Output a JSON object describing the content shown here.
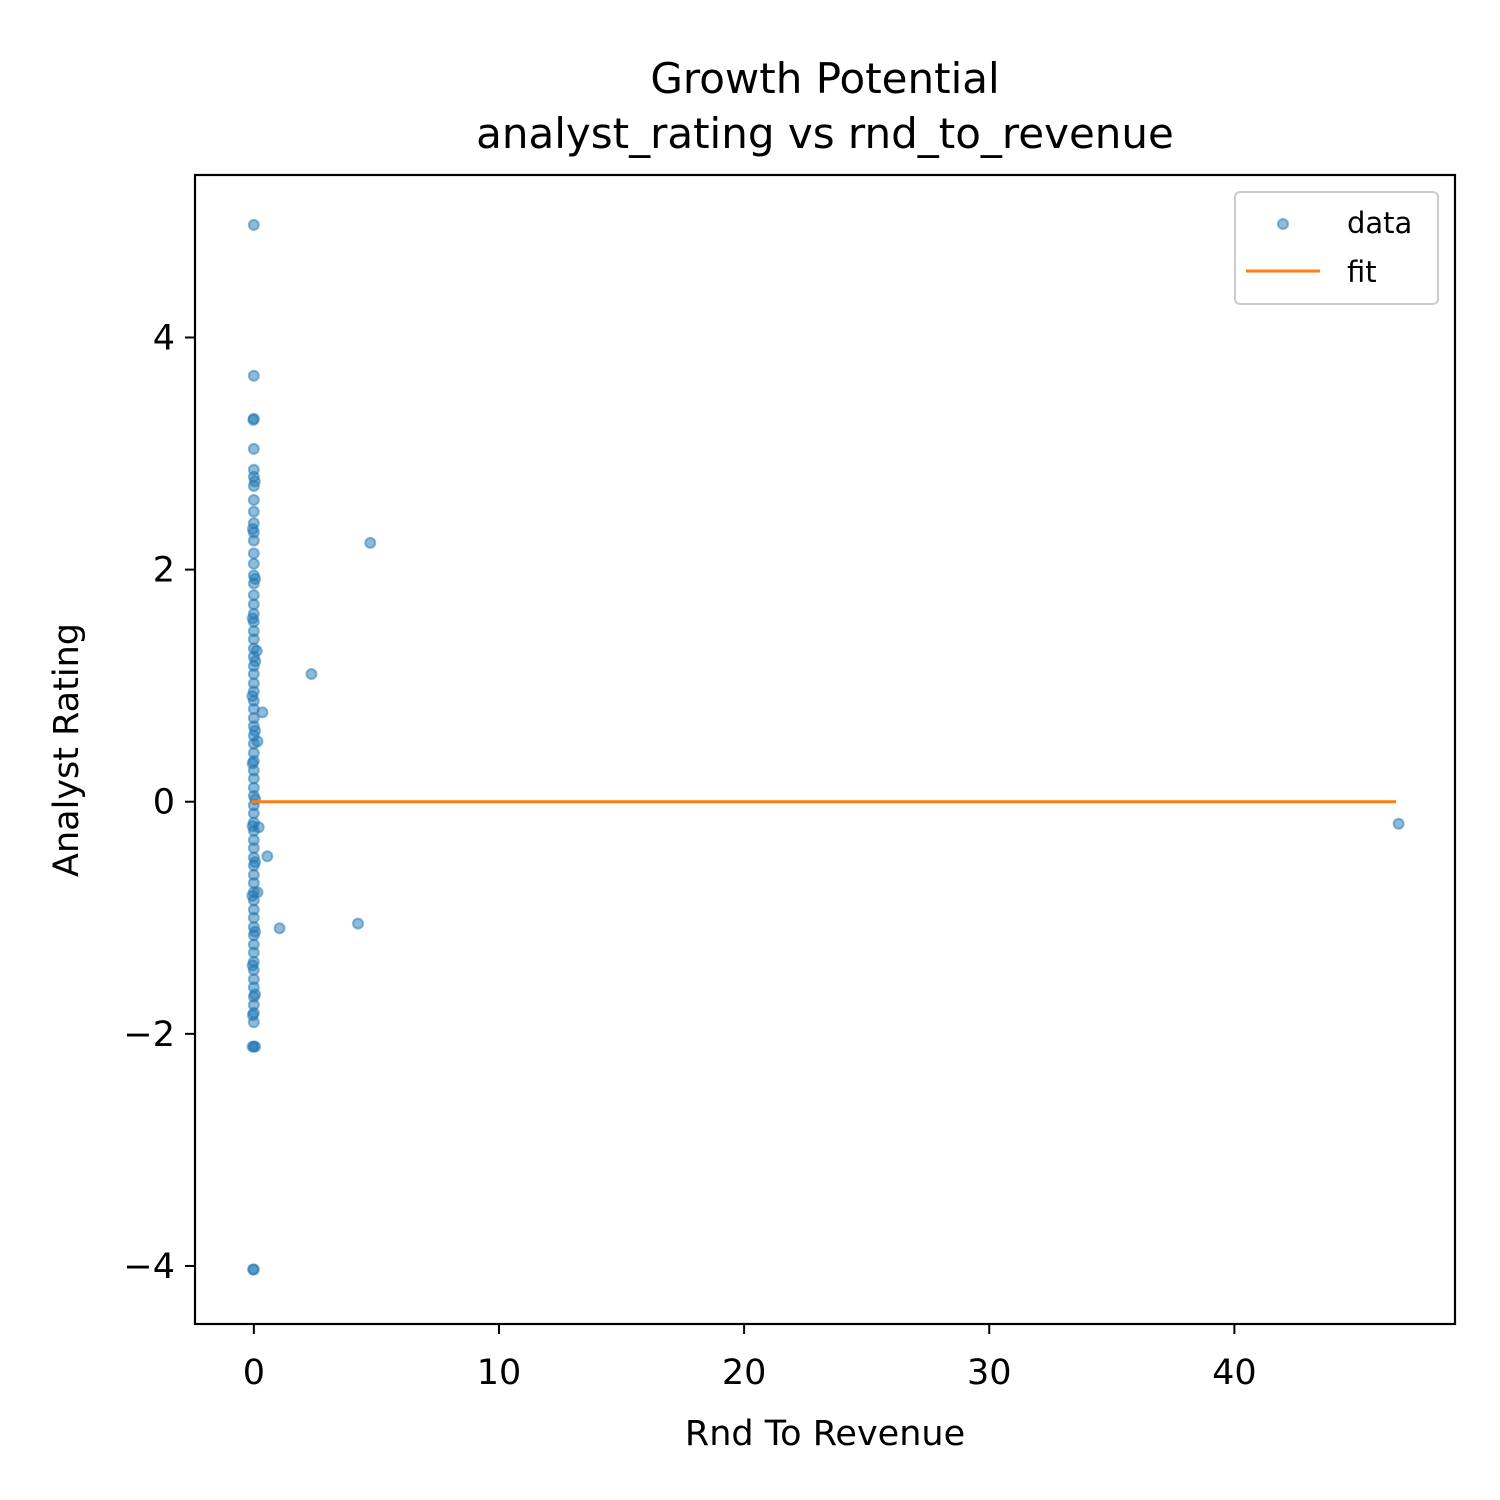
{
  "chart_data": {
    "type": "scatter",
    "title": "Growth Potential",
    "subtitle": "analyst_rating vs rnd_to_revenue",
    "xlabel": "Rnd To Revenue",
    "ylabel": "Analyst Rating",
    "xlim": [
      -2.4,
      49.0
    ],
    "ylim": [
      -4.5,
      5.4
    ],
    "xticks": [
      0,
      10,
      20,
      30,
      40
    ],
    "xtick_labels": [
      "0",
      "10",
      "20",
      "30",
      "40"
    ],
    "yticks": [
      -4,
      -2,
      0,
      2,
      4
    ],
    "ytick_labels": [
      "−4",
      "−2",
      "0",
      "2",
      "4"
    ],
    "grid": false,
    "legend": {
      "position": "top-right",
      "entries": [
        "data",
        "fit"
      ]
    },
    "colors": {
      "data": "#1f77b4",
      "fit": "#ff7f0e"
    },
    "series": [
      {
        "name": "data",
        "type": "scatter",
        "points": [
          [
            0.0,
            4.97
          ],
          [
            0.0,
            3.67
          ],
          [
            0.0,
            3.3
          ],
          [
            -0.02,
            3.29
          ],
          [
            0.0,
            3.04
          ],
          [
            0.0,
            2.86
          ],
          [
            0.0,
            2.8
          ],
          [
            0.0,
            2.72
          ],
          [
            0.0,
            2.6
          ],
          [
            0.0,
            2.5
          ],
          [
            0.0,
            2.4
          ],
          [
            0.0,
            2.32
          ],
          [
            0.0,
            2.25
          ],
          [
            0.0,
            2.14
          ],
          [
            0.0,
            2.05
          ],
          [
            0.0,
            1.95
          ],
          [
            0.0,
            1.88
          ],
          [
            0.0,
            1.78
          ],
          [
            0.0,
            1.7
          ],
          [
            0.0,
            1.62
          ],
          [
            0.0,
            1.55
          ],
          [
            0.0,
            1.47
          ],
          [
            0.0,
            1.4
          ],
          [
            0.0,
            1.32
          ],
          [
            0.0,
            1.25
          ],
          [
            0.0,
            1.17
          ],
          [
            0.0,
            1.1
          ],
          [
            0.0,
            1.02
          ],
          [
            0.0,
            0.95
          ],
          [
            0.0,
            0.87
          ],
          [
            0.0,
            0.8
          ],
          [
            0.0,
            0.72
          ],
          [
            0.0,
            0.65
          ],
          [
            0.0,
            0.57
          ],
          [
            0.0,
            0.5
          ],
          [
            0.0,
            0.42
          ],
          [
            0.0,
            0.35
          ],
          [
            0.0,
            0.27
          ],
          [
            0.0,
            0.2
          ],
          [
            0.0,
            0.12
          ],
          [
            0.0,
            0.05
          ],
          [
            0.0,
            -0.03
          ],
          [
            0.0,
            -0.1
          ],
          [
            0.0,
            -0.18
          ],
          [
            0.0,
            -0.25
          ],
          [
            0.0,
            -0.33
          ],
          [
            0.0,
            -0.4
          ],
          [
            0.0,
            -0.48
          ],
          [
            0.0,
            -0.55
          ],
          [
            0.0,
            -0.63
          ],
          [
            0.0,
            -0.7
          ],
          [
            0.0,
            -0.78
          ],
          [
            0.0,
            -0.85
          ],
          [
            0.0,
            -0.93
          ],
          [
            0.0,
            -1.0
          ],
          [
            0.0,
            -1.08
          ],
          [
            0.0,
            -1.15
          ],
          [
            0.0,
            -1.23
          ],
          [
            0.0,
            -1.3
          ],
          [
            0.0,
            -1.38
          ],
          [
            0.0,
            -1.45
          ],
          [
            0.0,
            -1.53
          ],
          [
            0.0,
            -1.6
          ],
          [
            0.0,
            -1.68
          ],
          [
            0.0,
            -1.75
          ],
          [
            0.0,
            -1.82
          ],
          [
            0.0,
            -1.9
          ],
          [
            0.0,
            -2.11
          ],
          [
            -0.05,
            -2.11
          ],
          [
            0.05,
            -2.11
          ],
          [
            0.0,
            -4.03
          ],
          [
            -0.03,
            -4.03
          ],
          [
            0.04,
            2.76
          ],
          [
            -0.04,
            2.35
          ],
          [
            0.05,
            1.92
          ],
          [
            -0.05,
            1.58
          ],
          [
            0.06,
            1.21
          ],
          [
            -0.06,
            0.91
          ],
          [
            0.05,
            0.61
          ],
          [
            -0.05,
            0.33
          ],
          [
            0.06,
            0.02
          ],
          [
            -0.05,
            -0.21
          ],
          [
            0.05,
            -0.52
          ],
          [
            -0.06,
            -0.81
          ],
          [
            0.05,
            -1.12
          ],
          [
            -0.05,
            -1.41
          ],
          [
            0.05,
            -1.66
          ],
          [
            -0.04,
            -1.84
          ],
          [
            0.15,
            0.52
          ],
          [
            0.2,
            -0.22
          ],
          [
            0.15,
            -0.78
          ],
          [
            0.12,
            1.3
          ],
          [
            0.35,
            0.77
          ],
          [
            0.55,
            -0.47
          ],
          [
            1.05,
            -1.09
          ],
          [
            2.35,
            1.1
          ],
          [
            4.25,
            -1.05
          ],
          [
            4.75,
            2.23
          ],
          [
            46.7,
            -0.19
          ]
        ]
      },
      {
        "name": "fit",
        "type": "line",
        "points": [
          [
            -0.1,
            0.0
          ],
          [
            46.6,
            0.0
          ]
        ]
      }
    ]
  }
}
